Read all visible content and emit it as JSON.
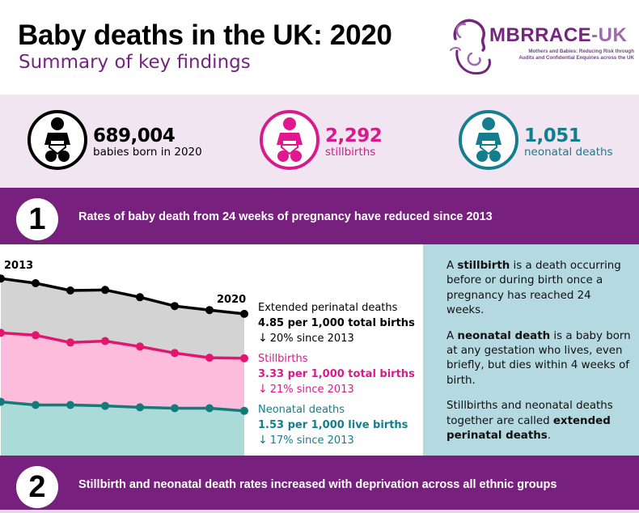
{
  "header": {
    "title": "Baby deaths in the UK: 2020",
    "subtitle": "Summary of key findings",
    "logo": {
      "word_part1": "MBRRACE",
      "word_part2": "-UK",
      "tagline_line1": "Mothers and Babies: Reducing Risk through",
      "tagline_line2": "Audits and Confidential Enquiries across the UK"
    }
  },
  "stats": [
    {
      "icon": "baby-icon",
      "value": "689,004",
      "label": "babies born in 2020",
      "color": "#000000"
    },
    {
      "icon": "baby-icon",
      "value": "2,292",
      "label": "stillbirths",
      "color": "#d81b8c"
    },
    {
      "icon": "baby-icon",
      "value": "1,051",
      "label": "neonatal deaths",
      "color": "#147e8e"
    }
  ],
  "sections": [
    {
      "number": "1",
      "text": "Rates of baby death from 24 weeks of pregnancy have reduced since 2013"
    },
    {
      "number": "2",
      "text": "Stillbirth and neonatal death rates increased with deprivation across all ethnic groups"
    }
  ],
  "legend": {
    "extended": {
      "name": "Extended perinatal deaths",
      "rate": "4.85 per 1,000 total births",
      "change": "20% since 2013",
      "arrow": "↓"
    },
    "stillbirths": {
      "name": "Stillbirths",
      "rate": "3.33 per 1,000 total births",
      "change": "21% since 2013",
      "arrow": "↓"
    },
    "neonatal": {
      "name": "Neonatal deaths",
      "rate": "1.53 per 1,000 live births",
      "change": "17% since 2013",
      "arrow": "↓"
    }
  },
  "definitions": {
    "p1_pre": "A ",
    "p1_bold": "stillbirth",
    "p1_post": " is a death occurring before or during birth once a pregnancy has reached 24 weeks.",
    "p2_pre": "A ",
    "p2_bold": "neonatal death",
    "p2_post": " is a baby born at any gestation who lives, even briefly, but dies within 4 weeks of birth.",
    "p3_pre": "Stillbirths and neonatal deaths together are called ",
    "p3_bold": "extended perinatal deaths",
    "p3_post": "."
  },
  "chart_data": {
    "type": "area",
    "title": "Rates of baby death from 24 weeks of pregnancy",
    "x": [
      2013,
      2014,
      2015,
      2016,
      2017,
      2018,
      2019,
      2020
    ],
    "x_labels_shown": [
      "2013",
      "2020"
    ],
    "series": [
      {
        "name": "Extended perinatal deaths",
        "unit": "per 1,000 total births",
        "color": "#000000",
        "fill": "#d3d3d3",
        "values": [
          6.06,
          5.9,
          5.65,
          5.67,
          5.42,
          5.12,
          4.98,
          4.85
        ]
      },
      {
        "name": "Stillbirths",
        "unit": "per 1,000 total births",
        "color": "#e3166f",
        "fill": "#fcbcdc",
        "values": [
          4.2,
          4.12,
          3.87,
          3.92,
          3.73,
          3.51,
          3.35,
          3.33
        ]
      },
      {
        "name": "Neonatal deaths",
        "unit": "per 1,000 live births",
        "color": "#147a7a",
        "fill": "#aadbd8",
        "values": [
          1.84,
          1.73,
          1.73,
          1.7,
          1.65,
          1.62,
          1.62,
          1.53
        ]
      }
    ],
    "xlabel": "",
    "ylabel": "",
    "ylim": [
      0,
      6.5
    ],
    "grid": false,
    "legend_position": "right"
  }
}
